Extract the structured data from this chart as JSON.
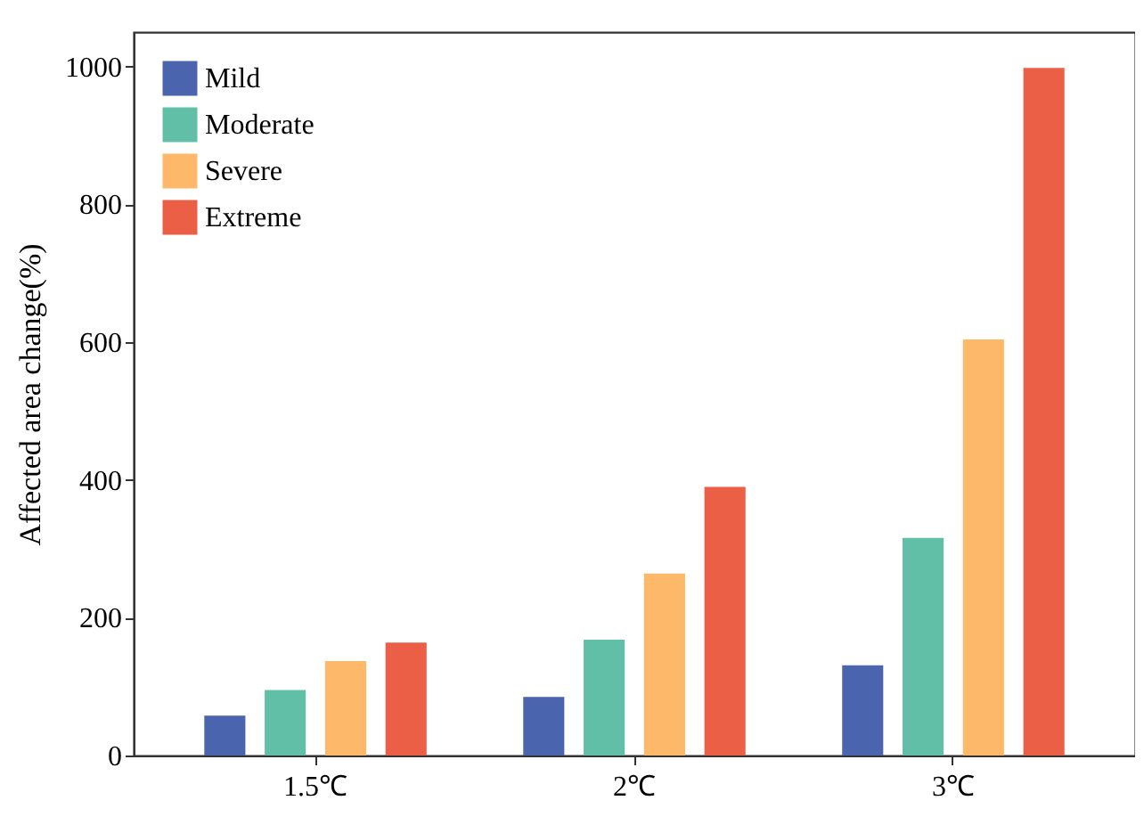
{
  "chart_data": {
    "type": "bar",
    "ylabel": "Affected area change(%)",
    "categories": [
      "1.5℃",
      "2℃",
      "3℃"
    ],
    "series": [
      {
        "name": "Mild",
        "color": "#4a64ad",
        "values": [
          58,
          85,
          131
        ]
      },
      {
        "name": "Moderate",
        "color": "#62bfa7",
        "values": [
          95,
          168,
          316
        ]
      },
      {
        "name": "Severe",
        "color": "#fdb869",
        "values": [
          137,
          264,
          604
        ]
      },
      {
        "name": "Extreme",
        "color": "#ea5f46",
        "values": [
          164,
          390,
          998
        ]
      }
    ],
    "ylim": [
      0,
      1050
    ],
    "yticks": [
      0,
      200,
      400,
      600,
      800,
      1000
    ],
    "legend": "top left",
    "grid": false
  }
}
